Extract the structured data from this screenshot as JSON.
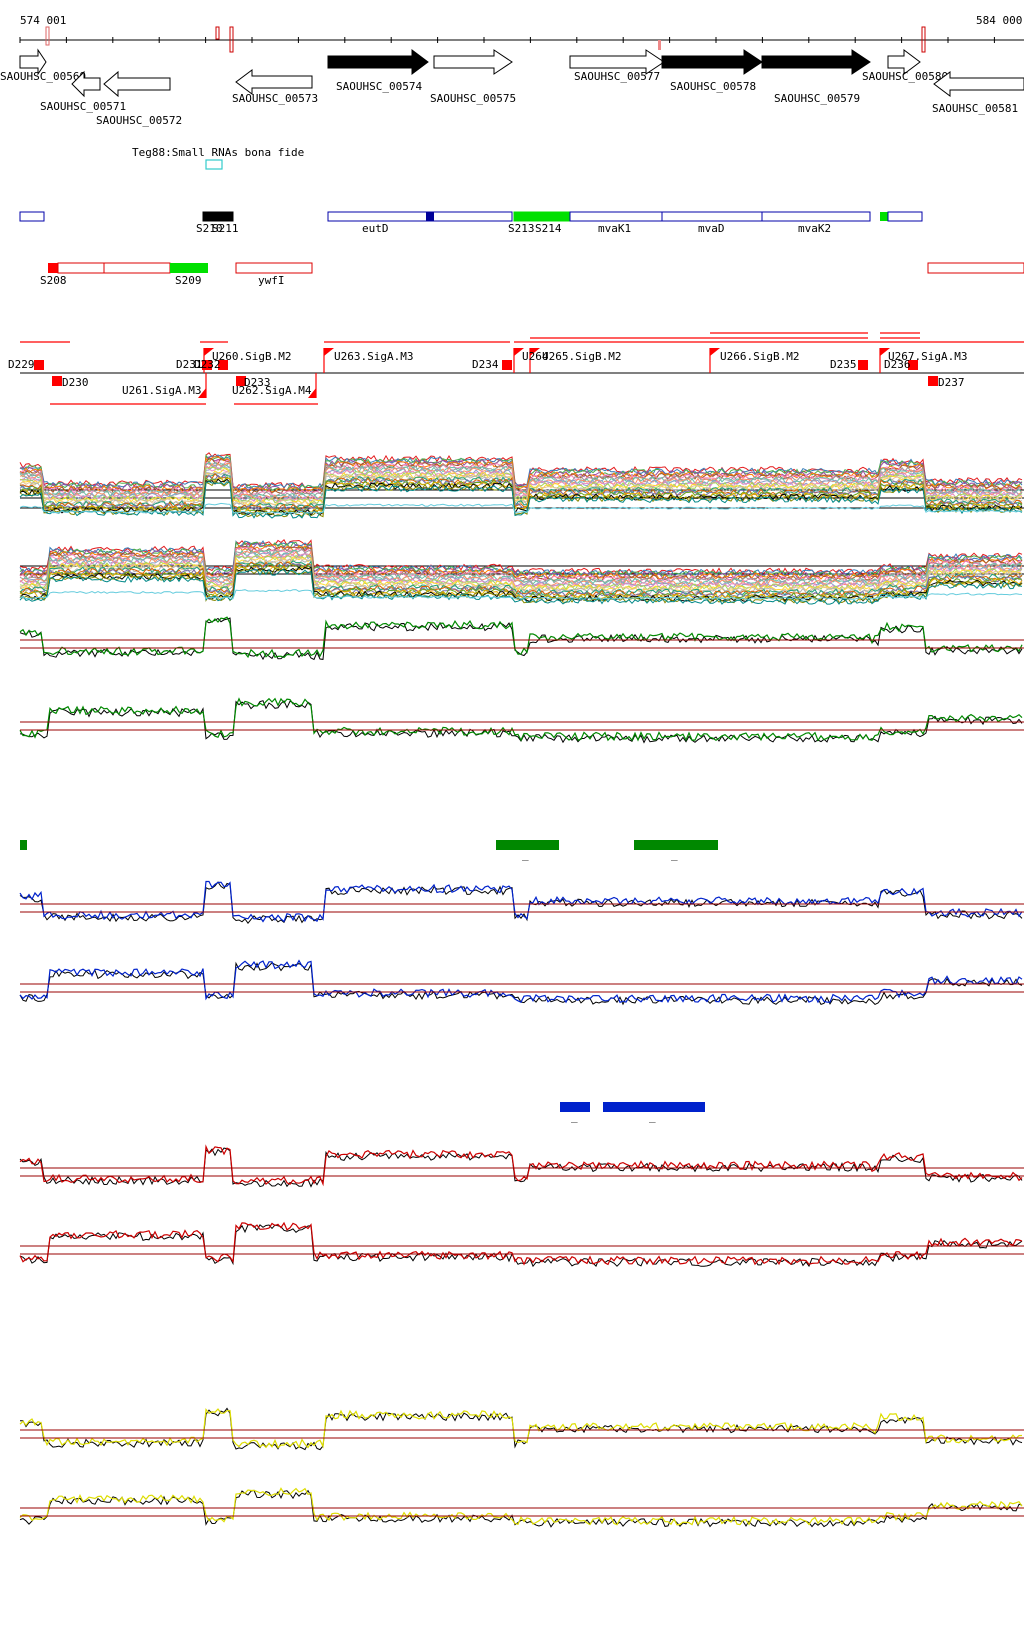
{
  "ruler": {
    "start_label": "574 001",
    "end_label": "584 000"
  },
  "genes": [
    {
      "label": "SAOUHSC_00569",
      "filled": false,
      "dir": "right"
    },
    {
      "label": "SAOUHSC_00571",
      "filled": false,
      "dir": "left"
    },
    {
      "label": "SAOUHSC_00572",
      "filled": false,
      "dir": "left"
    },
    {
      "label": "SAOUHSC_00573",
      "filled": false,
      "dir": "left"
    },
    {
      "label": "SAOUHSC_00574",
      "filled": true,
      "dir": "right"
    },
    {
      "label": "SAOUHSC_00575",
      "filled": false,
      "dir": "right"
    },
    {
      "label": "SAOUHSC_00577",
      "filled": false,
      "dir": "right"
    },
    {
      "label": "SAOUHSC_00578",
      "filled": true,
      "dir": "right"
    },
    {
      "label": "SAOUHSC_00579",
      "filled": true,
      "dir": "right"
    },
    {
      "label": "SAOUHSC_00580",
      "filled": false,
      "dir": "right"
    },
    {
      "label": "SAOUHSC_00581",
      "filled": false,
      "dir": "left"
    }
  ],
  "srna_track": {
    "title": "Teg88:Small RNAs bona fide"
  },
  "plus_features": [
    {
      "label": "S210",
      "color": "#000000"
    },
    {
      "label": "S211",
      "color": "#000000"
    },
    {
      "label": "eutD",
      "color": "#ffffff"
    },
    {
      "label": "S213",
      "color": "#00e000"
    },
    {
      "label": "S214",
      "color": "#00e000"
    },
    {
      "label": "mvaK1",
      "color": "#ffffff"
    },
    {
      "label": "mvaD",
      "color": "#ffffff"
    },
    {
      "label": "mvaK2",
      "color": "#ffffff"
    }
  ],
  "minus_features": [
    {
      "label": "S208",
      "color": "#ff0000"
    },
    {
      "label": "S209",
      "color": "#00e000"
    },
    {
      "label": "ywfI",
      "color": "#ffffff"
    }
  ],
  "tss_labels": [
    {
      "label": "D229"
    },
    {
      "label": "D230"
    },
    {
      "label": "U260.SigB.M2"
    },
    {
      "label": "U261.SigA.M3"
    },
    {
      "label": "D231"
    },
    {
      "label": "D232"
    },
    {
      "label": "D233"
    },
    {
      "label": "U262.SigA.M4"
    },
    {
      "label": "U263.SigA.M3"
    },
    {
      "label": "D234"
    },
    {
      "label": "U264"
    },
    {
      "label": "U265.SigB.M2"
    },
    {
      "label": "U266.SigB.M2"
    },
    {
      "label": "D235"
    },
    {
      "label": "D236"
    },
    {
      "label": "U267.SigA.M3"
    },
    {
      "label": "D237"
    }
  ],
  "colors": {
    "gene_outline": "#000000",
    "feature_blue": "#0000aa",
    "feature_red": "#dd0000",
    "srna_cyan": "#33cccc",
    "ref_line": "#990000",
    "green_track": "#008800",
    "blue_track": "#0022cc",
    "red_track": "#cc0000",
    "yellow_track": "#dddd00"
  },
  "small_marks": [
    {
      "label": "_"
    },
    {
      "label": "_"
    },
    {
      "label": "_"
    },
    {
      "label": "_"
    }
  ]
}
